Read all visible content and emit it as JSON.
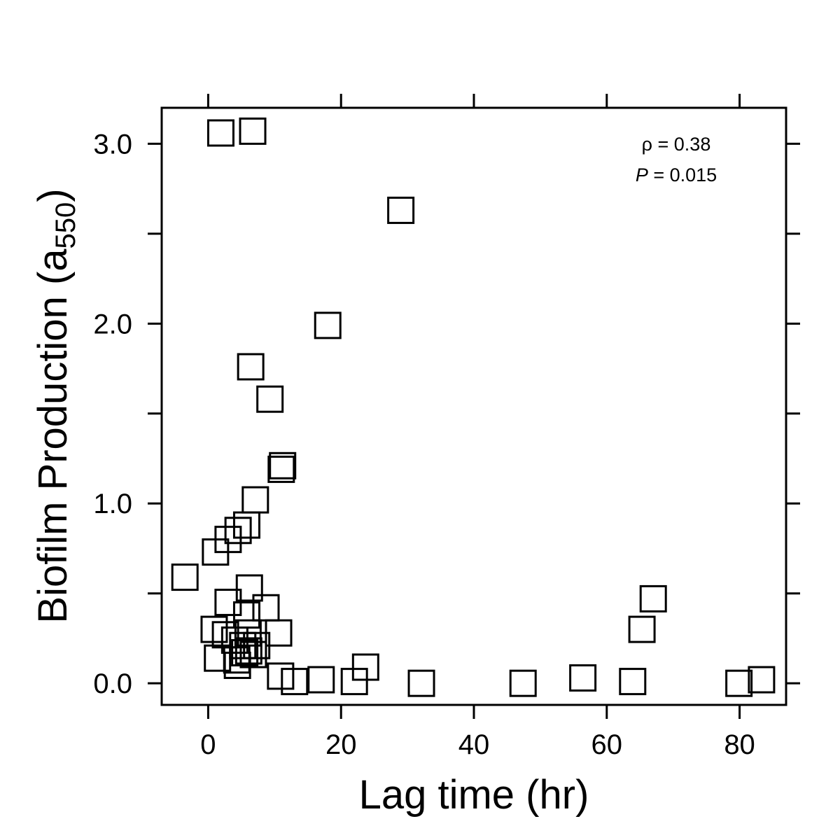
{
  "chart_data": {
    "type": "scatter",
    "xlabel": "Lag time (hr)",
    "ylabel": {
      "main": "Biofilm Production (a",
      "subscript": "550",
      "close": ")"
    },
    "xlim": [
      -7,
      87
    ],
    "ylim": [
      -0.12,
      3.2
    ],
    "xticks": [
      0,
      20,
      40,
      60,
      80
    ],
    "xtick_labels": [
      "0",
      "20",
      "40",
      "60",
      "80"
    ],
    "yticks": [
      0.0,
      0.5,
      1.0,
      1.5,
      2.0,
      2.5,
      3.0
    ],
    "ytick_labels": [
      "0.0",
      "",
      "1.0",
      "",
      "2.0",
      "",
      "3.0"
    ],
    "grid": false,
    "legend": "none",
    "marker": "open-square",
    "annotations": {
      "rho_symbol": "ρ",
      "rho_text": " = 0.38",
      "p_symbol": "P",
      "p_text": " = 0.015"
    },
    "points": [
      {
        "x": 1.9,
        "y": 3.06
      },
      {
        "x": 6.7,
        "y": 3.07
      },
      {
        "x": 29.0,
        "y": 2.63
      },
      {
        "x": 18.0,
        "y": 1.99
      },
      {
        "x": 6.4,
        "y": 1.76
      },
      {
        "x": 9.3,
        "y": 1.58
      },
      {
        "x": 11.2,
        "y": 1.21
      },
      {
        "x": 11.0,
        "y": 1.19
      },
      {
        "x": 7.1,
        "y": 1.02
      },
      {
        "x": 5.8,
        "y": 0.88
      },
      {
        "x": 4.5,
        "y": 0.85
      },
      {
        "x": 3.0,
        "y": 0.8
      },
      {
        "x": 1.1,
        "y": 0.73
      },
      {
        "x": -3.5,
        "y": 0.59
      },
      {
        "x": 6.2,
        "y": 0.53
      },
      {
        "x": 3.0,
        "y": 0.45
      },
      {
        "x": 8.7,
        "y": 0.42
      },
      {
        "x": 5.8,
        "y": 0.38
      },
      {
        "x": 0.9,
        "y": 0.3
      },
      {
        "x": 2.6,
        "y": 0.27
      },
      {
        "x": 6.0,
        "y": 0.28
      },
      {
        "x": 10.6,
        "y": 0.28
      },
      {
        "x": 4.0,
        "y": 0.24
      },
      {
        "x": 5.2,
        "y": 0.21
      },
      {
        "x": 7.3,
        "y": 0.21
      },
      {
        "x": 6.1,
        "y": 0.18
      },
      {
        "x": 5.5,
        "y": 0.17
      },
      {
        "x": 6.8,
        "y": 0.16
      },
      {
        "x": 1.4,
        "y": 0.14
      },
      {
        "x": 4.3,
        "y": 0.13
      },
      {
        "x": 4.4,
        "y": 0.1
      },
      {
        "x": 10.9,
        "y": 0.04
      },
      {
        "x": 13.0,
        "y": 0.01
      },
      {
        "x": 17.0,
        "y": 0.02
      },
      {
        "x": 22.0,
        "y": 0.01
      },
      {
        "x": 23.7,
        "y": 0.09
      },
      {
        "x": 32.1,
        "y": 0.0
      },
      {
        "x": 47.4,
        "y": 0.0
      },
      {
        "x": 56.4,
        "y": 0.03
      },
      {
        "x": 63.9,
        "y": 0.01
      },
      {
        "x": 65.3,
        "y": 0.3
      },
      {
        "x": 67.0,
        "y": 0.47
      },
      {
        "x": 79.9,
        "y": 0.0
      },
      {
        "x": 83.3,
        "y": 0.02
      }
    ]
  }
}
